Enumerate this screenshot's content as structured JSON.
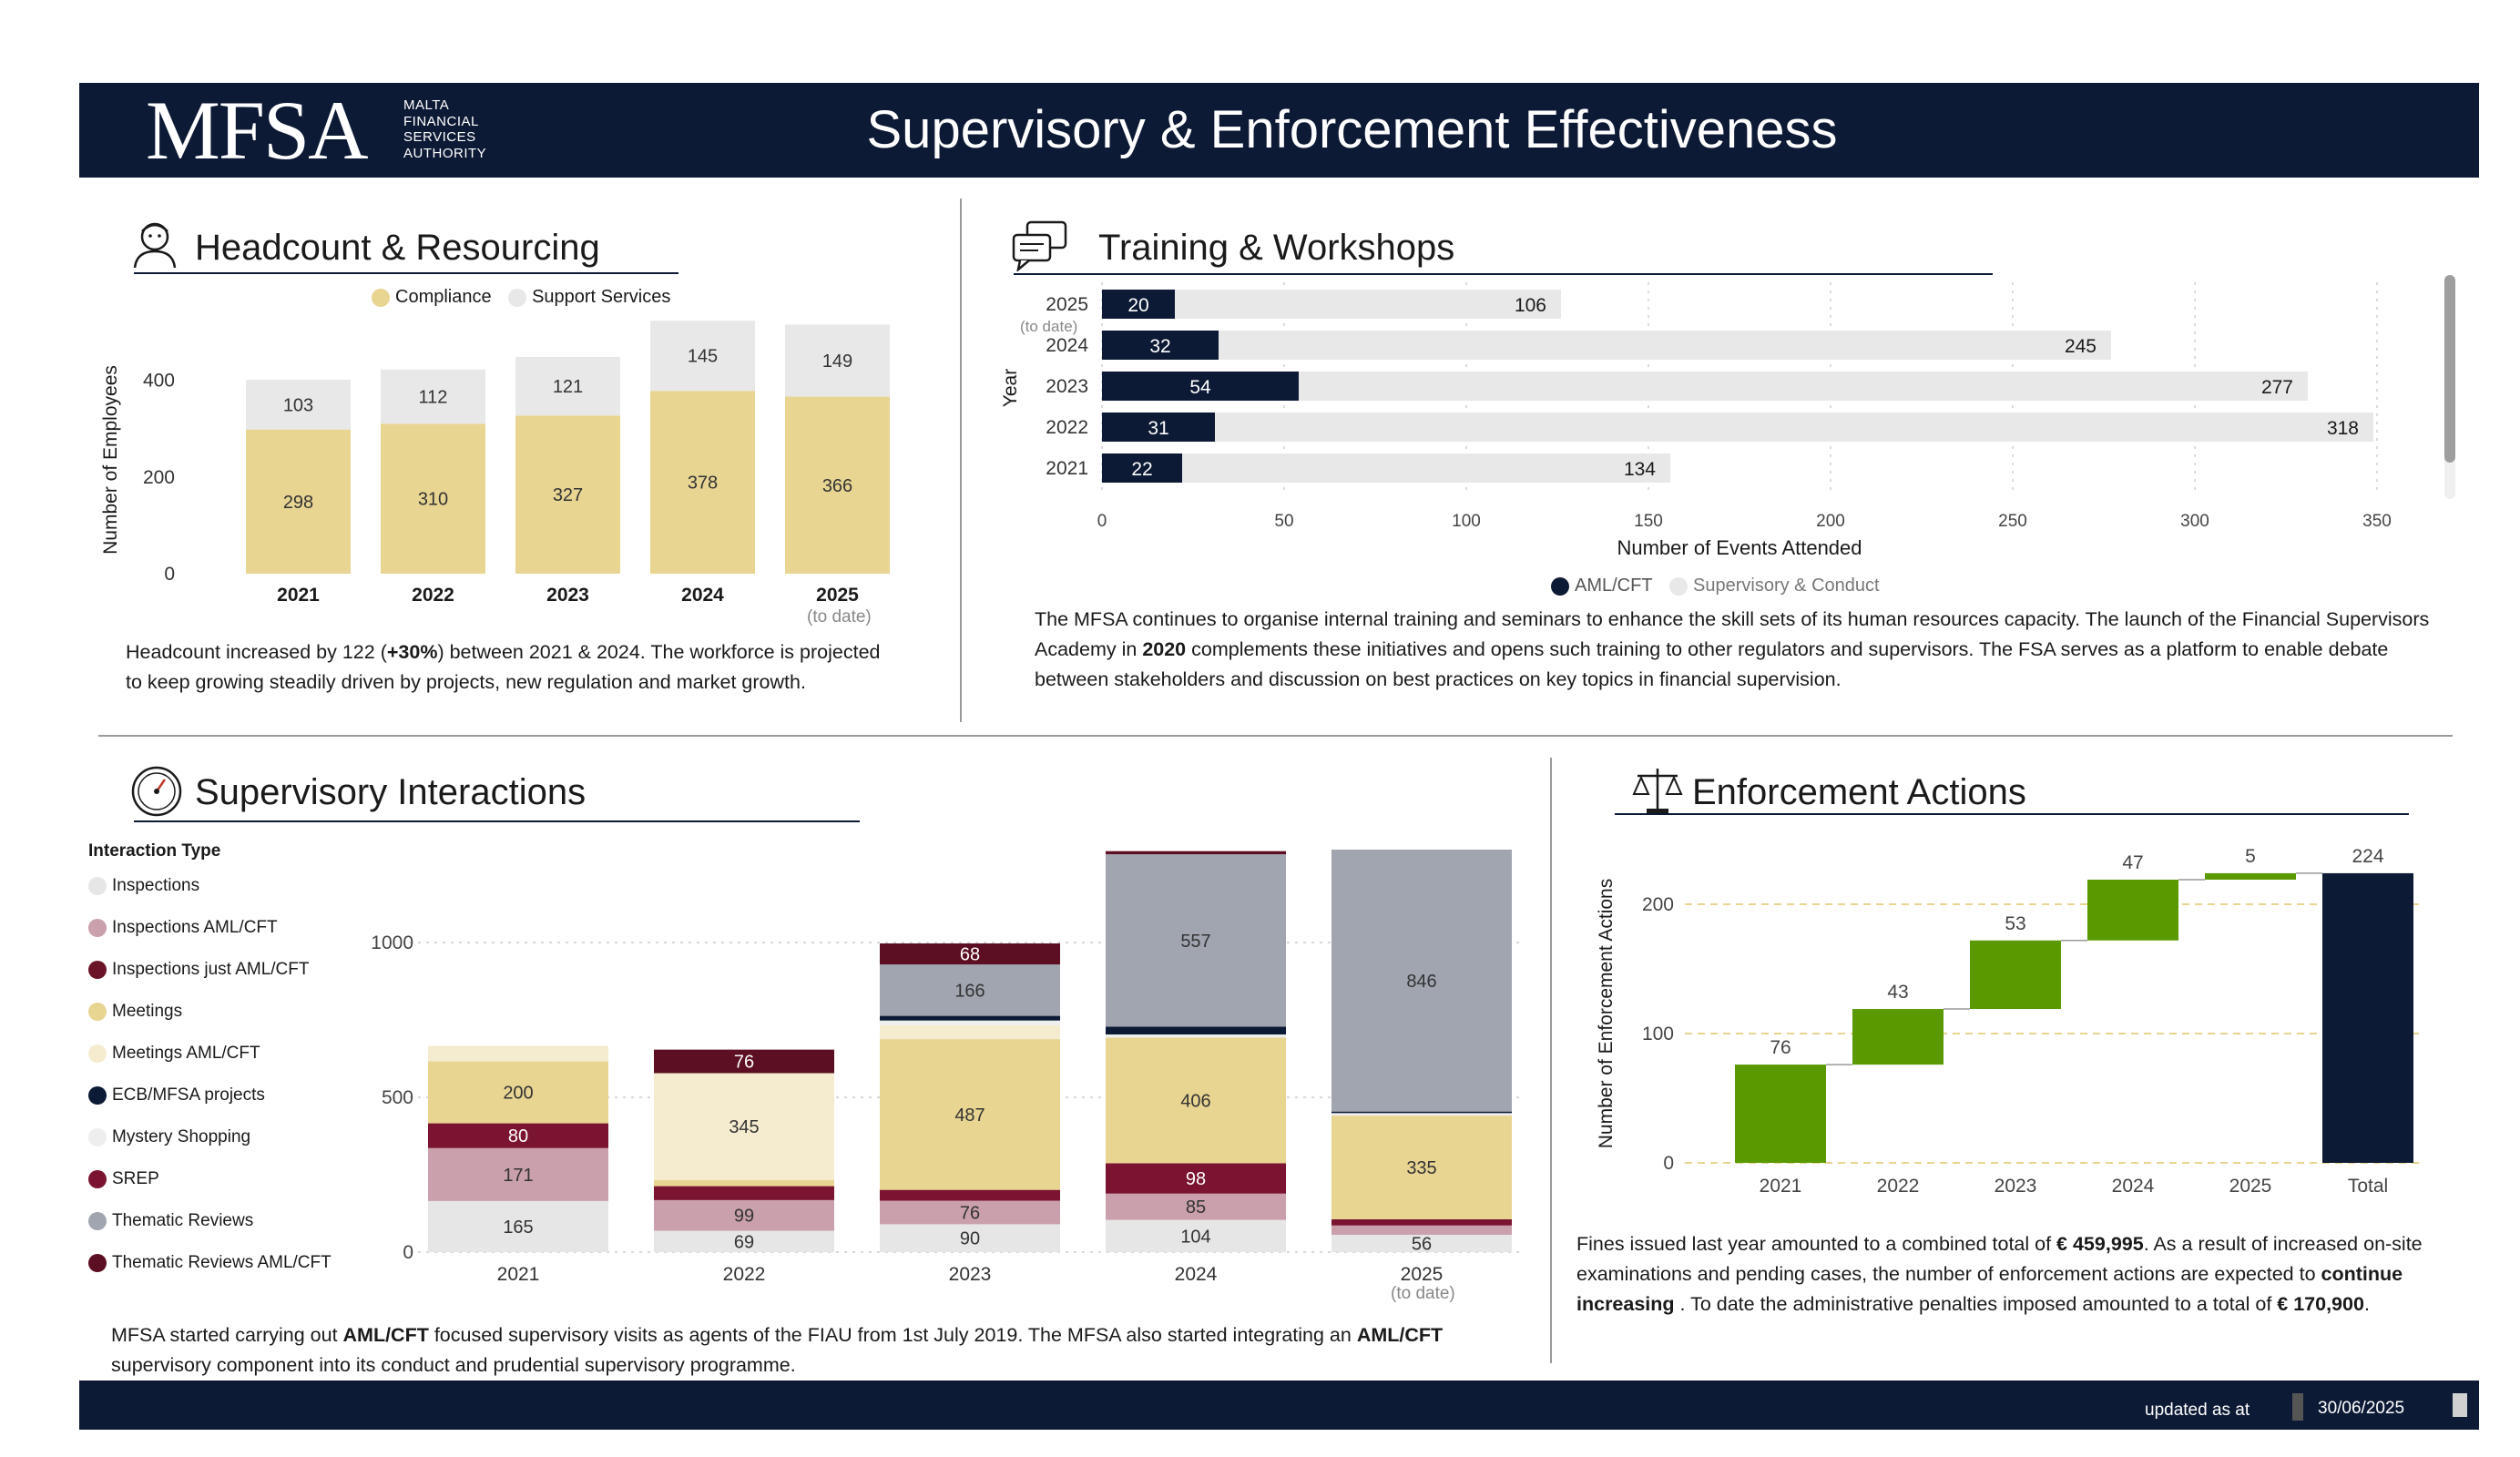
{
  "header": {
    "logo": "MFSA",
    "logo_sub": [
      "MALTA",
      "FINANCIAL",
      "SERVICES",
      "AUTHORITY"
    ],
    "title": "Supervisory & Enforcement Effectiveness"
  },
  "headcount": {
    "title": "Headcount & Resourcing",
    "legend": [
      "Compliance",
      "Support Services"
    ],
    "note_to_date": "(to date)",
    "text_before": "Headcount increased by 122 (",
    "text_bold": "+30%",
    "text_after": ") between 2021 & 2024. The workforce is projected to keep growing steadily driven by projects, new regulation and market growth."
  },
  "training": {
    "title": "Training & Workshops",
    "note_to_date": "(to date)",
    "legend": [
      "AML/CFT",
      "Supervisory & Conduct"
    ],
    "text_a": "The MFSA continues to organise internal training and seminars to enhance the skill sets of its human resources capacity. The launch of the Financial Supervisors Academy in ",
    "text_bold": "2020",
    "text_b": " complements these initiatives and opens such training to other regulators and supervisors. The FSA serves as a platform to enable debate between stakeholders and discussion on best practices on key topics in financial supervision."
  },
  "interactions": {
    "title": "Supervisory Interactions",
    "legend_title": "Interaction Type",
    "legend": [
      "Inspections",
      "Inspections  AML/CFT",
      "Inspections just AML/CFT",
      "Meetings",
      "Meetings  AML/CFT",
      "ECB/MFSA projects",
      "Mystery Shopping",
      "SREP",
      "Thematic Reviews",
      "Thematic Reviews   AML/CFT"
    ],
    "note_to_date": "(to date)",
    "text_a": "MFSA started carrying out ",
    "text_bold1": "AML/CFT",
    "text_b": " focused supervisory visits as agents of the FIAU from 1st July 2019. The MFSA also started integrating an ",
    "text_bold2": "AML/CFT",
    "text_c": " supervisory component into its conduct and prudential supervisory programme."
  },
  "enforcement": {
    "title": "Enforcement Actions",
    "text_a": "Fines issued last year amounted to a combined total of ",
    "text_bold1": "€ 459,995",
    "text_b": ". As a result of increased on-site examinations and pending cases, the number of enforcement actions are expected to ",
    "text_bold2": "continue increasing",
    "text_c": " . To date the administrative penalties imposed amounted to a total of ",
    "text_bold3": "€ 170,900",
    "text_d": "."
  },
  "footer": {
    "updated_label": "updated as at",
    "date": "30/06/2025"
  },
  "colors": {
    "navy": "#0d1a35",
    "compliance": "#e8d592",
    "support": "#e8e8e8",
    "inspections": "#e6e6e6",
    "inspections_aml": "#c9a0ab",
    "inspections_just_aml": "#6b1428",
    "meetings": "#e8d592",
    "meetings_aml": "#f5ecd0",
    "ecb": "#0d1a35",
    "mystery": "#eeeeee",
    "srep": "#7a1430",
    "thematic": "#a0a5b0",
    "thematic_aml": "#5c0f22",
    "waterfall_up": "#5a9a00"
  },
  "chart_data": [
    {
      "id": "headcount",
      "type": "bar",
      "stacked": true,
      "categories": [
        "2021",
        "2022",
        "2023",
        "2024",
        "2025"
      ],
      "series": [
        {
          "name": "Compliance",
          "values": [
            298,
            310,
            327,
            378,
            366
          ]
        },
        {
          "name": "Support Services",
          "values": [
            103,
            112,
            121,
            145,
            149
          ]
        }
      ],
      "ylabel": "Number of Employees",
      "yticks": [
        0,
        200,
        400
      ],
      "ylim": [
        0,
        480
      ]
    },
    {
      "id": "training",
      "type": "bar",
      "orientation": "horizontal",
      "categories": [
        "2025",
        "2024",
        "2023",
        "2022",
        "2021"
      ],
      "series": [
        {
          "name": "AML/CFT",
          "values": [
            20,
            32,
            54,
            31,
            22
          ]
        },
        {
          "name": "Supervisory & Conduct",
          "values": [
            106,
            245,
            277,
            318,
            134
          ]
        }
      ],
      "xlabel": "Number of Events Attended",
      "ylabel": "Year",
      "xticks": [
        0,
        50,
        100,
        150,
        200,
        250,
        300,
        350
      ],
      "xlim": [
        0,
        350
      ]
    },
    {
      "id": "interactions",
      "type": "bar",
      "stacked": true,
      "categories": [
        "2021",
        "2022",
        "2023",
        "2024",
        "2025"
      ],
      "yticks": [
        0,
        500,
        1000
      ],
      "ylim": [
        0,
        1300
      ],
      "series": [
        {
          "name": "Inspections",
          "values": [
            165,
            69,
            90,
            104,
            56
          ]
        },
        {
          "name": "Inspections  AML/CFT",
          "values": [
            171,
            99,
            76,
            85,
            30
          ]
        },
        {
          "name": "Inspections just AML/CFT",
          "values": [
            0,
            0,
            0,
            0,
            0
          ]
        },
        {
          "name": "SREP",
          "values": [
            80,
            45,
            35,
            98,
            20
          ]
        },
        {
          "name": "Meetings",
          "values": [
            200,
            20,
            487,
            406,
            335
          ]
        },
        {
          "name": "Meetings  AML/CFT",
          "values": [
            50,
            345,
            45,
            0,
            0
          ]
        },
        {
          "name": "Mystery Shopping",
          "values": [
            0,
            0,
            15,
            10,
            8
          ]
        },
        {
          "name": "ECB/MFSA projects",
          "values": [
            0,
            0,
            15,
            25,
            5
          ]
        },
        {
          "name": "Thematic Reviews",
          "values": [
            0,
            0,
            166,
            557,
            846
          ]
        },
        {
          "name": "Thematic Reviews   AML/CFT",
          "values": [
            0,
            76,
            68,
            10,
            0
          ]
        }
      ],
      "labels": [
        {
          "cat": "2021",
          "series": "Inspections",
          "text": "165"
        },
        {
          "cat": "2021",
          "series": "Inspections  AML/CFT",
          "text": "171"
        },
        {
          "cat": "2021",
          "series": "SREP",
          "text": "80"
        },
        {
          "cat": "2021",
          "series": "Meetings",
          "text": "200"
        },
        {
          "cat": "2022",
          "series": "Inspections",
          "text": "69"
        },
        {
          "cat": "2022",
          "series": "Inspections  AML/CFT",
          "text": "99"
        },
        {
          "cat": "2022",
          "series": "Meetings  AML/CFT",
          "text": "345"
        },
        {
          "cat": "2022",
          "series": "Thematic Reviews   AML/CFT",
          "text": "76"
        },
        {
          "cat": "2023",
          "series": "Inspections",
          "text": "90"
        },
        {
          "cat": "2023",
          "series": "Inspections  AML/CFT",
          "text": "76"
        },
        {
          "cat": "2023",
          "series": "Meetings",
          "text": "487"
        },
        {
          "cat": "2023",
          "series": "Thematic Reviews",
          "text": "166"
        },
        {
          "cat": "2023",
          "series": "Thematic Reviews   AML/CFT",
          "text": "68"
        },
        {
          "cat": "2024",
          "series": "Inspections",
          "text": "104"
        },
        {
          "cat": "2024",
          "series": "Inspections  AML/CFT",
          "text": "85"
        },
        {
          "cat": "2024",
          "series": "SREP",
          "text": "98"
        },
        {
          "cat": "2024",
          "series": "Meetings",
          "text": "406"
        },
        {
          "cat": "2024",
          "series": "Thematic Reviews",
          "text": "557"
        },
        {
          "cat": "2025",
          "series": "Inspections",
          "text": "56"
        },
        {
          "cat": "2025",
          "series": "Meetings",
          "text": "335"
        },
        {
          "cat": "2025",
          "series": "Thematic Reviews",
          "text": "846"
        }
      ]
    },
    {
      "id": "enforcement",
      "type": "bar",
      "subtype": "waterfall",
      "categories": [
        "2021",
        "2022",
        "2023",
        "2024",
        "2025",
        "Total"
      ],
      "values": [
        76,
        43,
        53,
        47,
        5,
        224
      ],
      "ylabel": "Number of Enforcement Actions",
      "yticks": [
        0,
        100,
        200
      ],
      "ylim": [
        0,
        250
      ]
    }
  ]
}
